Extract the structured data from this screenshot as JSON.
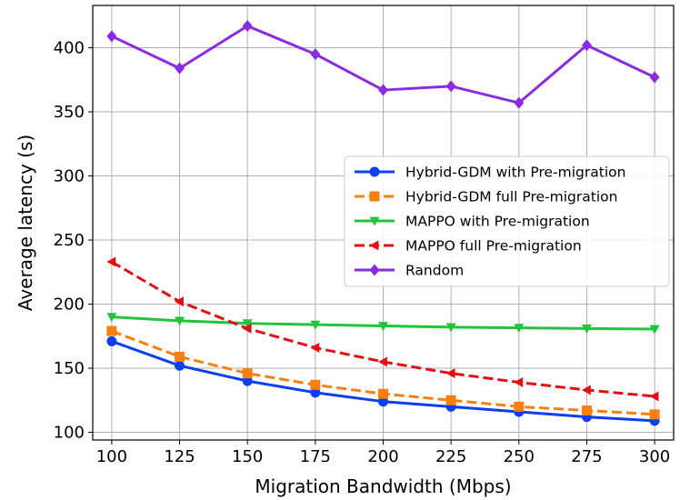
{
  "chart_data": {
    "type": "line",
    "title": "",
    "xlabel": "Migration Bandwidth (Mbps)",
    "ylabel": "Average latency (s)",
    "x": [
      100,
      125,
      150,
      175,
      200,
      225,
      250,
      275,
      300
    ],
    "xlim": [
      93,
      307
    ],
    "ylim": [
      94,
      433
    ],
    "xticks": [
      100,
      125,
      150,
      175,
      200,
      225,
      250,
      275,
      300
    ],
    "yticks": [
      100,
      150,
      200,
      250,
      300,
      350,
      400
    ],
    "grid": true,
    "legend_position": "center-right",
    "series": [
      {
        "name": "Hybrid-GDM with Pre-migration",
        "color": "#0b3ff0",
        "dash": "solid",
        "marker": "circle",
        "values": [
          171,
          152,
          140,
          131,
          124,
          120,
          116,
          112,
          109
        ]
      },
      {
        "name": "Hybrid-GDM full Pre-migration",
        "color": "#f97f0f",
        "dash": "dashed",
        "marker": "square",
        "values": [
          179,
          159,
          146,
          137,
          130,
          125,
          120,
          117,
          114
        ]
      },
      {
        "name": "MAPPO with Pre-migration",
        "color": "#22c43c",
        "dash": "solid",
        "marker": "triangle-down",
        "values": [
          190,
          187,
          185,
          184,
          183,
          182,
          181.5,
          181,
          180.5
        ]
      },
      {
        "name": "MAPPO full Pre-migration",
        "color": "#e11017",
        "dash": "dashed",
        "marker": "triangle-left",
        "values": [
          233,
          202,
          181,
          166,
          155,
          146,
          139,
          133,
          128
        ]
      },
      {
        "name": "Random",
        "color": "#8a2be2",
        "dash": "solid",
        "marker": "diamond",
        "values": [
          409,
          384,
          417,
          395,
          367,
          370,
          357,
          402,
          377
        ]
      }
    ]
  }
}
